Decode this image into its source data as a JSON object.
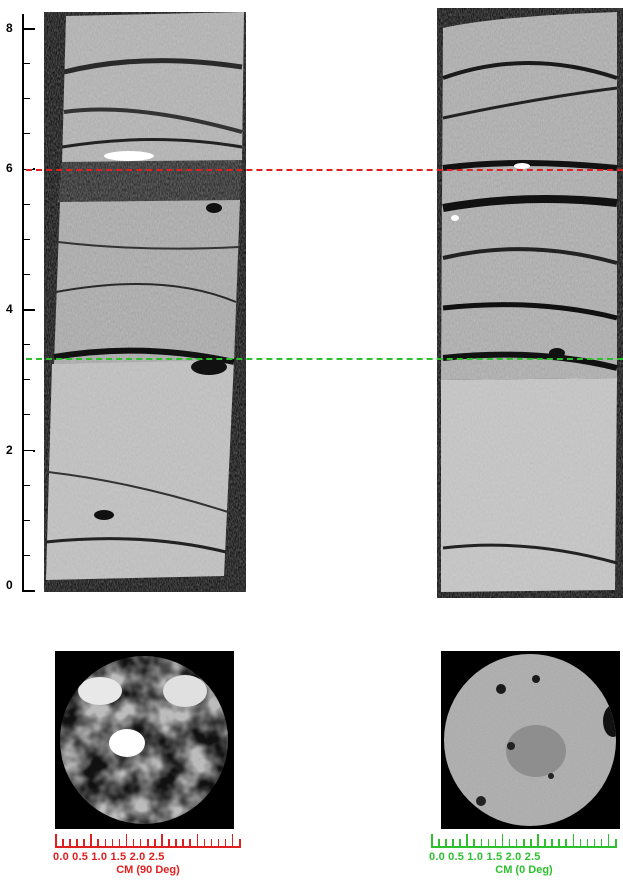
{
  "depth_axis": {
    "labels": [
      "8",
      "6",
      "4",
      "2",
      "0"
    ],
    "min": 0,
    "max": 8
  },
  "markers": {
    "red_line_depth": 6.0,
    "green_line_depth": 3.3,
    "red_color": "#e02020",
    "green_color": "#2ec02e"
  },
  "cores": {
    "left_view": "90 Deg",
    "right_view": "0 Deg"
  },
  "scale_left": {
    "tick_labels": "0.0 0.5 1.0 1.5 2.0 2.5",
    "unit": "CM (90 Deg)"
  },
  "scale_right": {
    "tick_labels": "0.0 0.5 1.0 1.5 2.0 2.5",
    "unit": "CM (0 Deg)"
  }
}
